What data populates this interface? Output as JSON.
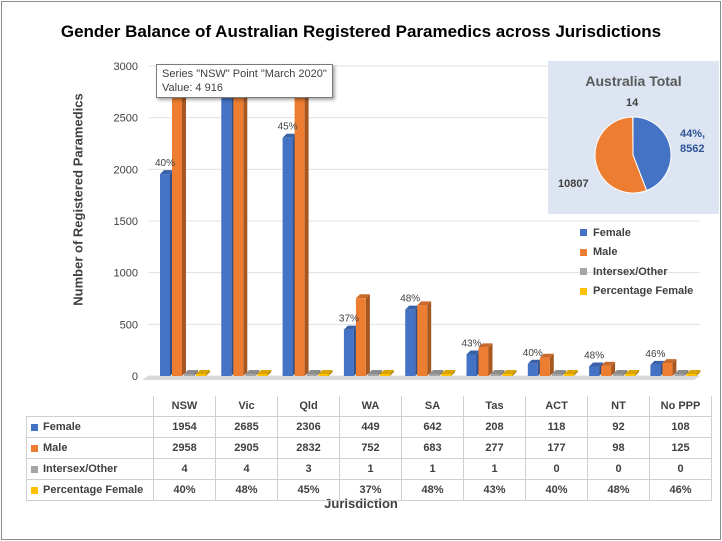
{
  "title": "Gender Balance of Australian Registered Paramedics across Jurisdictions",
  "tooltip": {
    "line1": "Series \"NSW\" Point \"March 2020\"",
    "line2": "Value:  4 916"
  },
  "colors": {
    "female": "#4472c4",
    "male": "#ed7d31",
    "intersex": "#a5a5a5",
    "percentage": "#ffc000"
  },
  "chart_data": [
    {
      "type": "bar",
      "title": "Gender Balance of Australian Registered Paramedics across Jurisdictions",
      "xlabel": "Jurisdiction",
      "ylabel": "Number of Registered Paramedics",
      "ylim": [
        0,
        3000
      ],
      "yticks": [
        "0",
        "500",
        "1000",
        "1500",
        "2000",
        "2500",
        "3000"
      ],
      "categories": [
        "NSW",
        "Vic",
        "Qld",
        "WA",
        "SA",
        "Tas",
        "ACT",
        "NT",
        "No PPP"
      ],
      "series": [
        {
          "name": "Female",
          "values": [
            1954,
            2685,
            2306,
            449,
            642,
            208,
            118,
            92,
            108
          ]
        },
        {
          "name": "Male",
          "values": [
            2958,
            2905,
            2832,
            752,
            683,
            277,
            177,
            98,
            125
          ]
        },
        {
          "name": "Intersex/Other",
          "values": [
            4,
            4,
            3,
            1,
            1,
            1,
            0,
            0,
            0
          ]
        },
        {
          "name": "Percentage Female",
          "values": [
            "40%",
            "48%",
            "45%",
            "37%",
            "48%",
            "43%",
            "40%",
            "48%",
            "46%"
          ]
        }
      ],
      "data_labels": [
        "40%",
        "",
        "45%",
        "37%",
        "48%",
        "43%",
        "40%",
        "48%",
        "46%"
      ],
      "legend": "right"
    },
    {
      "type": "pie",
      "title": "Australia Total",
      "categories": [
        "Female",
        "Male",
        "Intersex/Other"
      ],
      "values": [
        8562,
        10807,
        14
      ],
      "labels": [
        "44%, 8562",
        "10807",
        "14"
      ]
    }
  ]
}
